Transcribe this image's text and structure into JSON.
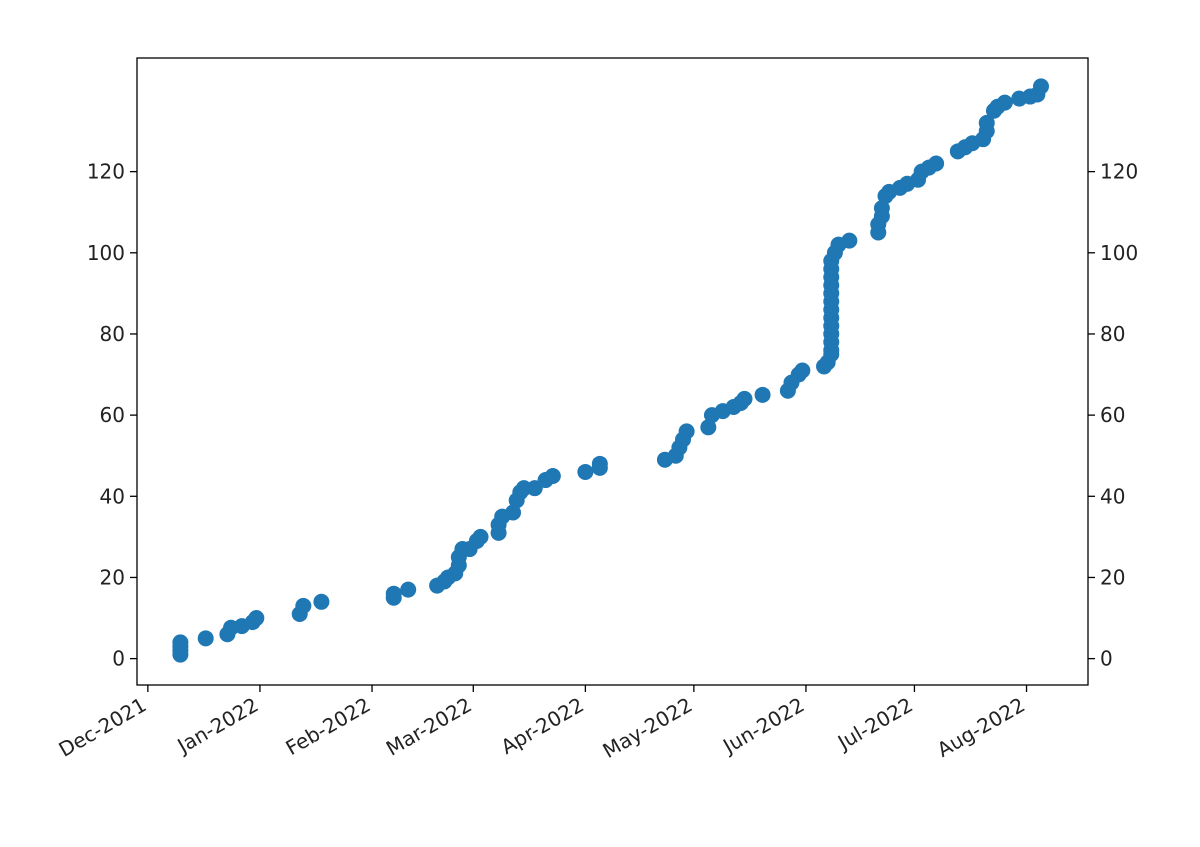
{
  "chart_data": {
    "type": "scatter",
    "x": [
      "2021-12-10",
      "2021-12-10",
      "2021-12-10",
      "2021-12-10",
      "2021-12-17",
      "2021-12-23",
      "2021-12-24",
      "2021-12-27",
      "2021-12-30",
      "2021-12-31",
      "2022-01-12",
      "2022-01-13",
      "2022-01-18",
      "2022-02-07",
      "2022-02-07",
      "2022-02-11",
      "2022-02-19",
      "2022-02-21",
      "2022-02-22",
      "2022-02-24",
      "2022-02-25",
      "2022-02-25",
      "2022-02-26",
      "2022-02-28",
      "2022-03-02",
      "2022-03-03",
      "2022-03-08",
      "2022-03-08",
      "2022-03-09",
      "2022-03-12",
      "2022-03-13",
      "2022-03-14",
      "2022-03-15",
      "2022-03-18",
      "2022-03-21",
      "2022-03-23",
      "2022-04-01",
      "2022-04-05",
      "2022-04-05",
      "2022-04-23",
      "2022-04-26",
      "2022-04-27",
      "2022-04-28",
      "2022-04-29",
      "2022-05-05",
      "2022-05-06",
      "2022-05-09",
      "2022-05-12",
      "2022-05-14",
      "2022-05-15",
      "2022-05-20",
      "2022-05-27",
      "2022-05-28",
      "2022-05-30",
      "2022-05-31",
      "2022-06-06",
      "2022-06-07",
      "2022-06-08",
      "2022-06-08",
      "2022-06-08",
      "2022-06-08",
      "2022-06-08",
      "2022-06-08",
      "2022-06-08",
      "2022-06-08",
      "2022-06-08",
      "2022-06-08",
      "2022-06-08",
      "2022-06-08",
      "2022-06-08",
      "2022-06-09",
      "2022-06-10",
      "2022-06-13",
      "2022-06-21",
      "2022-06-21",
      "2022-06-22",
      "2022-06-22",
      "2022-06-23",
      "2022-06-24",
      "2022-06-27",
      "2022-06-29",
      "2022-07-02",
      "2022-07-03",
      "2022-07-05",
      "2022-07-07",
      "2022-07-13",
      "2022-07-15",
      "2022-07-17",
      "2022-07-20",
      "2022-07-21",
      "2022-07-21",
      "2022-07-23",
      "2022-07-24",
      "2022-07-26",
      "2022-07-30",
      "2022-08-02",
      "2022-08-04",
      "2022-08-05"
    ],
    "series": [
      {
        "color": "#1f77b4",
        "values": [
          1,
          2,
          3,
          4,
          5,
          6,
          7.6,
          8,
          9,
          10,
          11,
          13,
          14,
          15,
          16,
          17,
          18,
          19,
          20,
          21,
          23,
          25,
          27,
          27,
          29,
          30,
          31,
          33,
          35,
          36,
          39,
          41,
          42,
          42,
          44,
          45,
          46,
          47,
          48,
          49,
          50,
          52,
          54,
          56,
          57,
          60,
          61,
          62,
          63,
          64,
          65,
          66,
          68,
          70,
          71,
          72,
          73,
          75,
          76,
          78,
          80,
          82,
          84,
          86,
          88,
          90,
          92,
          94,
          96,
          98,
          100,
          102,
          103,
          105,
          107,
          109,
          111,
          114,
          115,
          116,
          117,
          118,
          120,
          121,
          122,
          125,
          126,
          127,
          128,
          130,
          132,
          135,
          136,
          137,
          138,
          138.5,
          139,
          141
        ]
      }
    ],
    "xlim": [
      "2021-11-28",
      "2022-08-18"
    ],
    "xticks": [
      {
        "value": "2021-12-01",
        "label": "Dec-2021"
      },
      {
        "value": "2022-01-01",
        "label": "Jan-2022"
      },
      {
        "value": "2022-02-01",
        "label": "Feb-2022"
      },
      {
        "value": "2022-03-01",
        "label": "Mar-2022"
      },
      {
        "value": "2022-04-01",
        "label": "Apr-2022"
      },
      {
        "value": "2022-05-01",
        "label": "May-2022"
      },
      {
        "value": "2022-06-01",
        "label": "Jun-2022"
      },
      {
        "value": "2022-07-01",
        "label": "Jul-2022"
      },
      {
        "value": "2022-08-01",
        "label": "Aug-2022"
      }
    ],
    "ylim": [
      -6.5,
      148
    ],
    "yticks": [
      0,
      20,
      40,
      60,
      80,
      100,
      120
    ]
  }
}
